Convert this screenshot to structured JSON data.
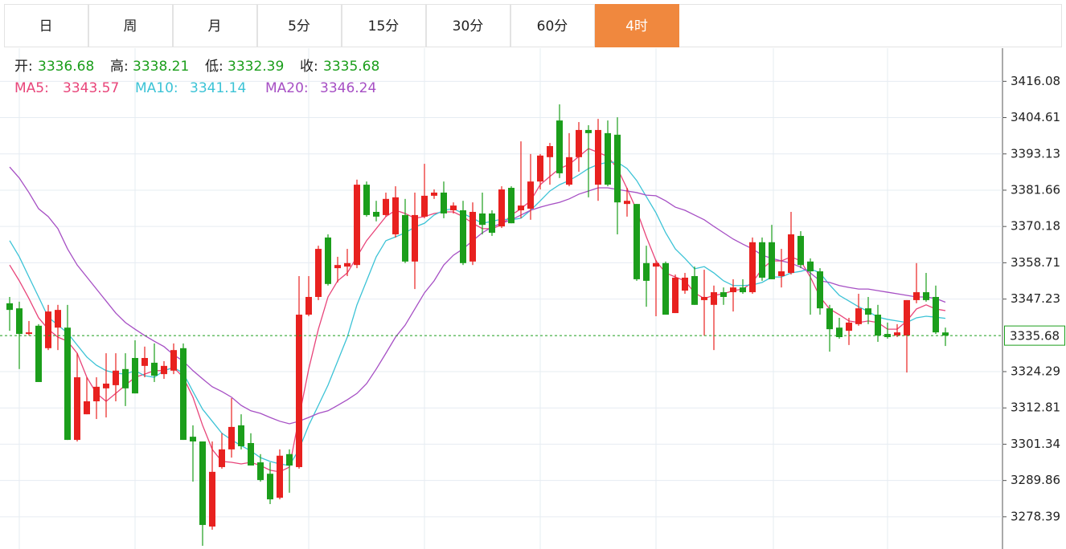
{
  "tabs": {
    "items": [
      "日",
      "周",
      "月",
      "5分",
      "15分",
      "30分",
      "60分",
      "4时"
    ],
    "active": 7
  },
  "chart_data": {
    "type": "candlestick",
    "ohlc_labels": [
      "开:",
      "高:",
      "低:",
      "收:"
    ],
    "up_color": "#e8211f",
    "down_color": "#1b9e1b",
    "grid": true,
    "ylim": [
      3268.2,
      3426.57
    ],
    "yticks": [
      3416.08,
      3404.61,
      3393.13,
      3381.66,
      3370.18,
      3358.71,
      3347.23,
      3324.29,
      3312.81,
      3301.34,
      3289.86,
      3278.39
    ],
    "open": [
      3345.9,
      3344.3,
      3336.2,
      3338.8,
      3331.7,
      3338.2,
      3338.2,
      3302.7,
      3310.8,
      3314.9,
      3319.0,
      3320.0,
      3325.1,
      3328.6,
      3326.1,
      3327.1,
      3323.5,
      3324.6,
      3331.7,
      3303.7,
      3302.2,
      3275.3,
      3294.1,
      3299.7,
      3307.3,
      3301.7,
      3295.6,
      3292.0,
      3284.4,
      3298.2,
      3294.1,
      3342.3,
      3347.9,
      3366.7,
      3357.0,
      3357.5,
      3358.0,
      3383.4,
      3374.8,
      3373.8,
      3367.7,
      3373.8,
      3359.1,
      3373.3,
      3379.9,
      3380.9,
      3375.3,
      3375.3,
      3359.1,
      3374.3,
      3374.3,
      3370.2,
      3382.4,
      3375.3,
      3375.8,
      3384.4,
      3392.1,
      3403.7,
      3383.4,
      3392.1,
      3400.7,
      3383.4,
      3399.7,
      3399.2,
      3377.3,
      3377.3,
      3358.6,
      3357.5,
      3358.6,
      3342.8,
      3349.9,
      3354.5,
      3346.9,
      3345.4,
      3349.4,
      3349.4,
      3350.9,
      3349.4,
      3365.2,
      3365.2,
      3354.5,
      3355.5,
      3367.2,
      3359.1,
      3356.0,
      3344.3,
      3338.2,
      3337.2,
      3339.3,
      3344.3,
      3342.3,
      3336.2,
      3335.7,
      3335.7,
      3346.9,
      3349.4,
      3347.9,
      3336.68
    ],
    "high": [
      3347.9,
      3346.4,
      3340.3,
      3339.3,
      3345.4,
      3345.4,
      3345.4,
      3330.1,
      3322.5,
      3322.5,
      3330.1,
      3330.1,
      3330.1,
      3334.2,
      3332.2,
      3333.2,
      3327.6,
      3333.2,
      3333.2,
      3307.3,
      3302.2,
      3302.2,
      3304.8,
      3315.9,
      3310.8,
      3304.8,
      3298.2,
      3295.6,
      3299.7,
      3299.7,
      3354.5,
      3354.5,
      3364.1,
      3367.7,
      3360.6,
      3363.1,
      3385.0,
      3384.4,
      3378.3,
      3380.9,
      3382.9,
      3378.9,
      3380.9,
      3390.0,
      3381.9,
      3384.4,
      3377.8,
      3378.3,
      3377.8,
      3380.9,
      3375.3,
      3382.9,
      3382.9,
      3397.1,
      3393.1,
      3393.1,
      3396.6,
      3408.8,
      3399.7,
      3403.2,
      3402.2,
      3404.2,
      3403.7,
      3404.7,
      3382.4,
      3377.3,
      3364.1,
      3359.6,
      3359.1,
      3355.0,
      3355.5,
      3357.5,
      3356.5,
      3351.5,
      3350.9,
      3353.5,
      3353.5,
      3366.7,
      3366.7,
      3370.7,
      3363.1,
      3374.8,
      3368.7,
      3360.1,
      3357.0,
      3345.4,
      3341.3,
      3341.3,
      3348.9,
      3347.9,
      3345.4,
      3339.8,
      3339.3,
      3346.9,
      3358.6,
      3355.5,
      3351.5,
      3338.21
    ],
    "low": [
      3337.2,
      3325.1,
      3335.7,
      3321.0,
      3331.1,
      3331.1,
      3302.7,
      3302.2,
      3310.8,
      3309.3,
      3309.8,
      3314.9,
      3313.4,
      3317.4,
      3322.5,
      3321.0,
      3322.0,
      3323.5,
      3302.7,
      3289.5,
      3269.2,
      3274.3,
      3293.6,
      3297.1,
      3299.7,
      3294.6,
      3289.5,
      3282.4,
      3283.9,
      3286.0,
      3293.6,
      3341.8,
      3346.9,
      3351.5,
      3352.5,
      3354.5,
      3357.0,
      3373.3,
      3371.8,
      3373.3,
      3366.7,
      3358.6,
      3350.4,
      3372.8,
      3378.9,
      3372.8,
      3374.3,
      3358.0,
      3358.0,
      3367.7,
      3367.2,
      3369.7,
      3371.2,
      3372.8,
      3372.3,
      3381.9,
      3383.4,
      3385.5,
      3382.9,
      3387.5,
      3379.4,
      3378.3,
      3382.9,
      3367.7,
      3373.3,
      3353.0,
      3344.8,
      3341.8,
      3342.3,
      3342.8,
      3348.9,
      3345.4,
      3335.7,
      3331.1,
      3345.4,
      3343.3,
      3348.9,
      3348.9,
      3353.0,
      3353.5,
      3350.9,
      3355.0,
      3357.0,
      3342.3,
      3342.3,
      3330.6,
      3334.7,
      3332.7,
      3338.8,
      3339.3,
      3333.7,
      3334.7,
      3335.2,
      3324.0,
      3345.9,
      3346.4,
      3336.2,
      3332.39
    ],
    "close": [
      3343.8,
      3336.2,
      3336.7,
      3321.0,
      3343.3,
      3343.8,
      3302.7,
      3322.5,
      3314.9,
      3319.5,
      3320.5,
      3324.6,
      3319.0,
      3317.4,
      3328.6,
      3323.0,
      3326.1,
      3331.1,
      3302.7,
      3302.2,
      3275.8,
      3292.6,
      3299.7,
      3306.8,
      3300.7,
      3294.6,
      3290.0,
      3283.9,
      3297.7,
      3294.6,
      3342.3,
      3347.9,
      3363.1,
      3352.0,
      3358.0,
      3358.6,
      3383.4,
      3373.8,
      3373.3,
      3378.9,
      3379.4,
      3359.1,
      3373.8,
      3379.9,
      3380.9,
      3374.3,
      3376.8,
      3358.6,
      3374.8,
      3370.7,
      3368.2,
      3381.9,
      3371.2,
      3376.8,
      3384.4,
      3392.6,
      3395.6,
      3387.0,
      3392.1,
      3400.7,
      3399.7,
      3400.7,
      3383.4,
      3377.8,
      3378.3,
      3353.5,
      3353.0,
      3358.6,
      3342.3,
      3354.0,
      3354.0,
      3345.4,
      3347.9,
      3349.4,
      3347.9,
      3350.9,
      3349.4,
      3365.2,
      3354.0,
      3353.5,
      3356.0,
      3367.7,
      3358.0,
      3356.0,
      3344.3,
      3337.7,
      3335.2,
      3339.8,
      3344.3,
      3342.3,
      3335.7,
      3335.2,
      3336.7,
      3346.9,
      3349.4,
      3346.9,
      3336.7,
      3335.68
    ],
    "series": [
      {
        "name": "MA5:",
        "color": "#e8457a",
        "values": [
          3358.0,
          3353.0,
          3347.4,
          3341.3,
          3337.7,
          3335.2,
          3333.9,
          3330.1,
          3322.5,
          3317.4,
          3314.9,
          3317.4,
          3320.0,
          3322.5,
          3323.5,
          3324.6,
          3324.6,
          3325.6,
          3322.5,
          3316.2,
          3307.3,
          3299.7,
          3295.9,
          3295.6,
          3295.1,
          3295.6,
          3294.6,
          3293.1,
          3292.6,
          3294.1,
          3309.8,
          3325.1,
          3337.7,
          3347.9,
          3353.0,
          3355.5,
          3360.6,
          3365.7,
          3369.5,
          3373.3,
          3375.3,
          3374.3,
          3372.8,
          3373.3,
          3374.3,
          3374.8,
          3374.8,
          3373.3,
          3371.2,
          3369.5,
          3369.5,
          3370.7,
          3373.8,
          3375.8,
          3378.3,
          3383.4,
          3386.0,
          3388.5,
          3389.8,
          3392.3,
          3394.8,
          3393.6,
          3392.3,
          3388.5,
          3382.2,
          3375.3,
          3366.9,
          3359.3,
          3355.5,
          3354.2,
          3353.0,
          3349.2,
          3347.4,
          3348.4,
          3348.9,
          3349.9,
          3350.4,
          3352.5,
          3356.8,
          3359.3,
          3359.3,
          3360.6,
          3359.3,
          3354.2,
          3347.9,
          3344.1,
          3342.3,
          3340.3,
          3339.8,
          3340.3,
          3339.8,
          3337.7,
          3337.7,
          3340.3,
          3344.1,
          3345.4,
          3344.1,
          3343.57
        ]
      },
      {
        "name": "MA10:",
        "color": "#3cc3d6",
        "values": [
          3365.7,
          3360.6,
          3354.2,
          3347.9,
          3341.5,
          3339.0,
          3336.5,
          3332.7,
          3328.9,
          3326.3,
          3324.6,
          3323.8,
          3323.5,
          3324.6,
          3323.0,
          3322.5,
          3324.6,
          3325.6,
          3323.8,
          3318.0,
          3312.4,
          3308.6,
          3304.8,
          3302.7,
          3300.9,
          3299.2,
          3297.1,
          3295.9,
          3295.1,
          3294.6,
          3299.7,
          3307.3,
          3313.6,
          3320.0,
          3327.6,
          3335.2,
          3345.4,
          3353.0,
          3360.6,
          3365.7,
          3366.9,
          3368.2,
          3370.0,
          3371.2,
          3373.8,
          3375.3,
          3375.8,
          3374.3,
          3372.8,
          3371.2,
          3371.8,
          3372.5,
          3372.3,
          3372.8,
          3375.3,
          3378.3,
          3381.4,
          3383.4,
          3384.7,
          3386.5,
          3388.5,
          3389.8,
          3390.5,
          3390.5,
          3388.5,
          3384.7,
          3379.6,
          3374.5,
          3368.2,
          3363.1,
          3360.1,
          3356.8,
          3357.5,
          3355.5,
          3353.0,
          3351.5,
          3351.5,
          3351.7,
          3352.5,
          3354.2,
          3354.2,
          3355.5,
          3356.0,
          3356.8,
          3355.5,
          3351.7,
          3348.4,
          3346.6,
          3344.8,
          3343.3,
          3341.5,
          3340.8,
          3340.3,
          3339.8,
          3341.3,
          3341.8,
          3341.5,
          3341.14
        ]
      },
      {
        "name": "MA20:",
        "color": "#a64fc4",
        "values": [
          3389.0,
          3385.5,
          3380.9,
          3375.8,
          3373.3,
          3369.5,
          3363.1,
          3358.0,
          3354.2,
          3350.4,
          3346.6,
          3342.8,
          3339.8,
          3337.7,
          3335.7,
          3333.9,
          3332.2,
          3329.6,
          3327.6,
          3324.6,
          3322.0,
          3319.5,
          3318.0,
          3316.2,
          3313.6,
          3311.9,
          3311.1,
          3309.8,
          3308.6,
          3307.8,
          3308.6,
          3309.8,
          3311.1,
          3311.9,
          3313.6,
          3315.4,
          3317.4,
          3320.5,
          3325.1,
          3330.1,
          3335.2,
          3339.0,
          3344.1,
          3349.2,
          3353.0,
          3358.0,
          3361.1,
          3363.1,
          3365.7,
          3368.2,
          3370.0,
          3371.2,
          3372.3,
          3373.8,
          3375.3,
          3376.3,
          3377.1,
          3377.8,
          3378.9,
          3380.4,
          3381.4,
          3382.4,
          3382.4,
          3381.9,
          3381.4,
          3380.9,
          3380.1,
          3379.9,
          3378.3,
          3376.3,
          3375.3,
          3373.8,
          3372.3,
          3370.2,
          3368.2,
          3366.2,
          3364.6,
          3363.1,
          3361.1,
          3360.1,
          3359.3,
          3358.6,
          3357.3,
          3355.5,
          3353.0,
          3352.5,
          3351.5,
          3350.9,
          3350.4,
          3350.4,
          3349.9,
          3349.4,
          3348.9,
          3348.4,
          3347.9,
          3347.9,
          3347.4,
          3346.24
        ]
      }
    ]
  }
}
